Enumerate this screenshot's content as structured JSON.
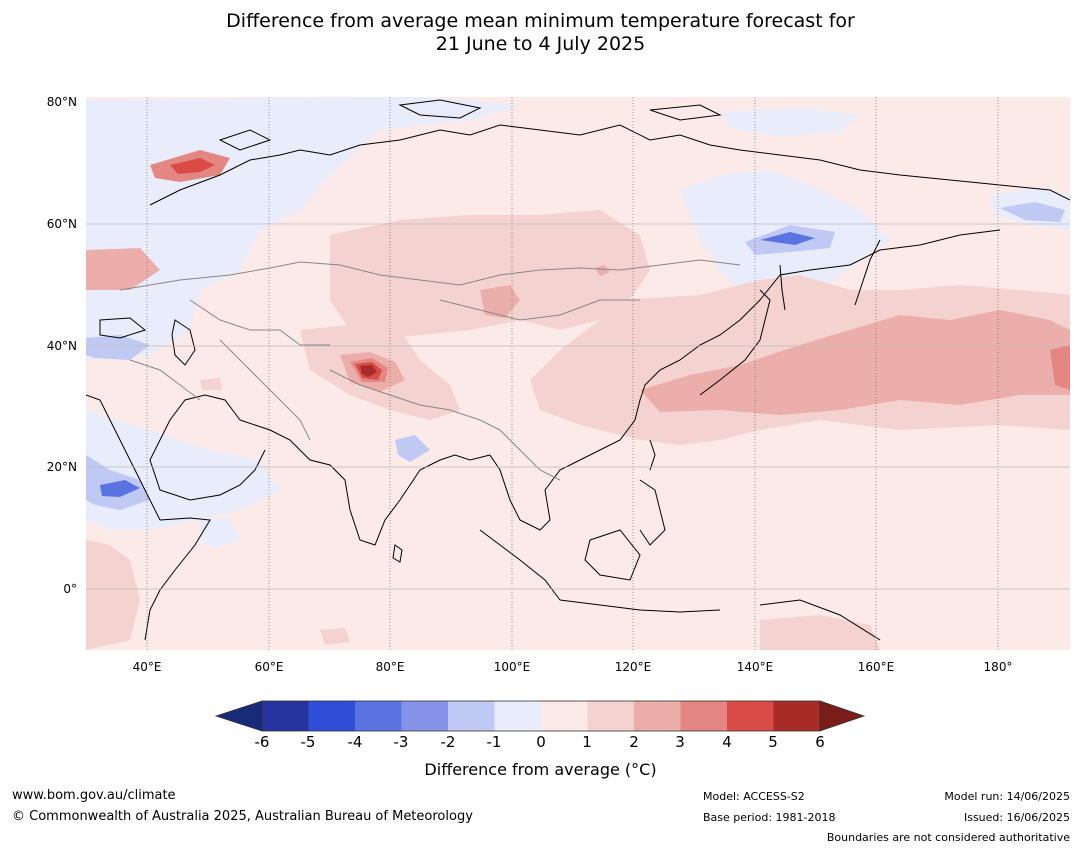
{
  "title": {
    "line1": "Difference from average mean minimum temperature forecast for",
    "line2": "21 June to 4 July 2025"
  },
  "map": {
    "lat_labels": [
      "80°N",
      "60°N",
      "40°N",
      "20°N",
      "0°"
    ],
    "lon_labels": [
      "40°E",
      "60°E",
      "80°E",
      "100°E",
      "120°E",
      "140°E",
      "160°E",
      "180°"
    ],
    "extent": {
      "lon_min": 30,
      "lon_max": 190,
      "lat_min": -10,
      "lat_max": 80
    },
    "ocean_color": "#fbeae8",
    "coast_color": "#000000",
    "border_color": "#888888",
    "grid_color": "#555555"
  },
  "colorbar": {
    "ticks": [
      "-6",
      "-5",
      "-4",
      "-3",
      "-2",
      "-1",
      "0",
      "1",
      "2",
      "3",
      "4",
      "5",
      "6"
    ],
    "colors": [
      "#26339f",
      "#2f4ed8",
      "#5a73e0",
      "#8593e8",
      "#c0c8f4",
      "#e8ecfb",
      "#fbeae8",
      "#f4d2cf",
      "#ecaeaa",
      "#e48783",
      "#d84c45",
      "#a82b26"
    ],
    "under_color": "#1a2a7a",
    "over_color": "#7a1c18",
    "label": "Difference from average (°C)"
  },
  "footer": {
    "website": "www.bom.gov.au/climate",
    "copyright": "© Commonwealth of Australia 2025, Australian Bureau of Meteorology",
    "model": "Model: ACCESS-S2",
    "base_period": "Base period: 1981-2018",
    "model_run": "Model run: 14/06/2025",
    "issued": "Issued: 16/06/2025",
    "disclaimer": "Boundaries are not considered authoritative"
  }
}
